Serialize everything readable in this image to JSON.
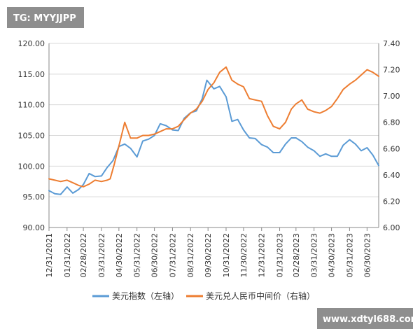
{
  "watermark_top": "TG: MYYJJPP",
  "watermark_bottom": "www.xdtyl688.com",
  "chart_data": {
    "type": "line",
    "grid": "horizontal",
    "legend_position": "bottom",
    "x_ticks": [
      "12/31/2021",
      "01/31/2022",
      "02/28/2022",
      "03/31/2022",
      "04/30/2022",
      "05/31/2022",
      "06/30/2022",
      "07/31/2022",
      "08/31/2022",
      "09/30/2022",
      "10/31/2022",
      "11/30/2022",
      "12/31/2022",
      "01/31/2023",
      "02/28/2023",
      "03/31/2023",
      "04/30/2023",
      "05/31/2023",
      "06/30/2023"
    ],
    "x_range": [
      "2021-12-31",
      "2023-07-20"
    ],
    "y_left": {
      "range": [
        90,
        120
      ],
      "ticks": [
        "90.00",
        "95.00",
        "100.00",
        "105.00",
        "110.00",
        "115.00",
        "120.00"
      ]
    },
    "y_right": {
      "range": [
        6.0,
        7.4
      ],
      "ticks": [
        "6.00",
        "6.20",
        "6.40",
        "6.60",
        "6.80",
        "7.00",
        "7.20",
        "7.40"
      ]
    },
    "series": [
      {
        "name": "美元指数（左轴）",
        "axis": "left",
        "color": "#5b9bd5",
        "x": [
          "2021-12-31",
          "2022-01-10",
          "2022-01-20",
          "2022-01-31",
          "2022-02-10",
          "2022-02-20",
          "2022-02-28",
          "2022-03-10",
          "2022-03-20",
          "2022-03-31",
          "2022-04-10",
          "2022-04-20",
          "2022-04-30",
          "2022-05-10",
          "2022-05-20",
          "2022-05-31",
          "2022-06-10",
          "2022-06-20",
          "2022-06-30",
          "2022-07-10",
          "2022-07-20",
          "2022-07-31",
          "2022-08-10",
          "2022-08-20",
          "2022-08-31",
          "2022-09-10",
          "2022-09-20",
          "2022-09-28",
          "2022-10-10",
          "2022-10-20",
          "2022-10-31",
          "2022-11-10",
          "2022-11-20",
          "2022-11-30",
          "2022-12-10",
          "2022-12-20",
          "2022-12-31",
          "2023-01-10",
          "2023-01-20",
          "2023-01-31",
          "2023-02-10",
          "2023-02-20",
          "2023-02-28",
          "2023-03-10",
          "2023-03-20",
          "2023-03-31",
          "2023-04-10",
          "2023-04-20",
          "2023-04-30",
          "2023-05-10",
          "2023-05-20",
          "2023-05-31",
          "2023-06-10",
          "2023-06-20",
          "2023-06-30",
          "2023-07-10",
          "2023-07-20"
        ],
        "values": [
          96.0,
          95.5,
          95.4,
          96.6,
          95.6,
          96.2,
          97.0,
          98.8,
          98.3,
          98.4,
          99.8,
          100.9,
          103.2,
          103.6,
          102.9,
          101.5,
          104.1,
          104.4,
          105.0,
          106.9,
          106.6,
          105.9,
          105.8,
          107.8,
          108.7,
          109.0,
          111.0,
          114.0,
          112.6,
          113.0,
          111.3,
          107.3,
          107.6,
          105.9,
          104.6,
          104.5,
          103.5,
          103.1,
          102.2,
          102.2,
          103.6,
          104.6,
          104.6,
          104.0,
          103.1,
          102.5,
          101.6,
          102.0,
          101.6,
          101.6,
          103.4,
          104.3,
          103.6,
          102.5,
          103.0,
          101.8,
          100.1
        ]
      },
      {
        "name": "美元兑人民币中间价（右轴）",
        "axis": "right",
        "color": "#ed7d31",
        "x": [
          "2021-12-31",
          "2022-01-10",
          "2022-01-20",
          "2022-01-31",
          "2022-02-10",
          "2022-02-20",
          "2022-02-28",
          "2022-03-10",
          "2022-03-20",
          "2022-03-31",
          "2022-04-10",
          "2022-04-15",
          "2022-04-22",
          "2022-04-30",
          "2022-05-10",
          "2022-05-20",
          "2022-05-31",
          "2022-06-10",
          "2022-06-20",
          "2022-06-30",
          "2022-07-10",
          "2022-07-20",
          "2022-07-31",
          "2022-08-10",
          "2022-08-20",
          "2022-08-31",
          "2022-09-10",
          "2022-09-20",
          "2022-09-30",
          "2022-10-10",
          "2022-10-20",
          "2022-10-31",
          "2022-11-10",
          "2022-11-20",
          "2022-11-30",
          "2022-12-10",
          "2022-12-20",
          "2022-12-31",
          "2023-01-10",
          "2023-01-20",
          "2023-01-31",
          "2023-02-10",
          "2023-02-20",
          "2023-02-28",
          "2023-03-10",
          "2023-03-20",
          "2023-03-31",
          "2023-04-10",
          "2023-04-20",
          "2023-04-30",
          "2023-05-10",
          "2023-05-20",
          "2023-05-31",
          "2023-06-10",
          "2023-06-20",
          "2023-06-30",
          "2023-07-10",
          "2023-07-20"
        ],
        "values": [
          6.37,
          6.36,
          6.35,
          6.36,
          6.34,
          6.32,
          6.31,
          6.33,
          6.36,
          6.35,
          6.36,
          6.37,
          6.48,
          6.62,
          6.8,
          6.68,
          6.68,
          6.7,
          6.7,
          6.71,
          6.73,
          6.75,
          6.75,
          6.77,
          6.82,
          6.87,
          6.9,
          6.96,
          7.05,
          7.1,
          7.18,
          7.22,
          7.12,
          7.09,
          7.07,
          6.98,
          6.97,
          6.96,
          6.85,
          6.77,
          6.75,
          6.8,
          6.9,
          6.94,
          6.97,
          6.9,
          6.88,
          6.87,
          6.89,
          6.92,
          6.98,
          7.05,
          7.09,
          7.12,
          7.16,
          7.2,
          7.18,
          7.15
        ]
      }
    ]
  }
}
